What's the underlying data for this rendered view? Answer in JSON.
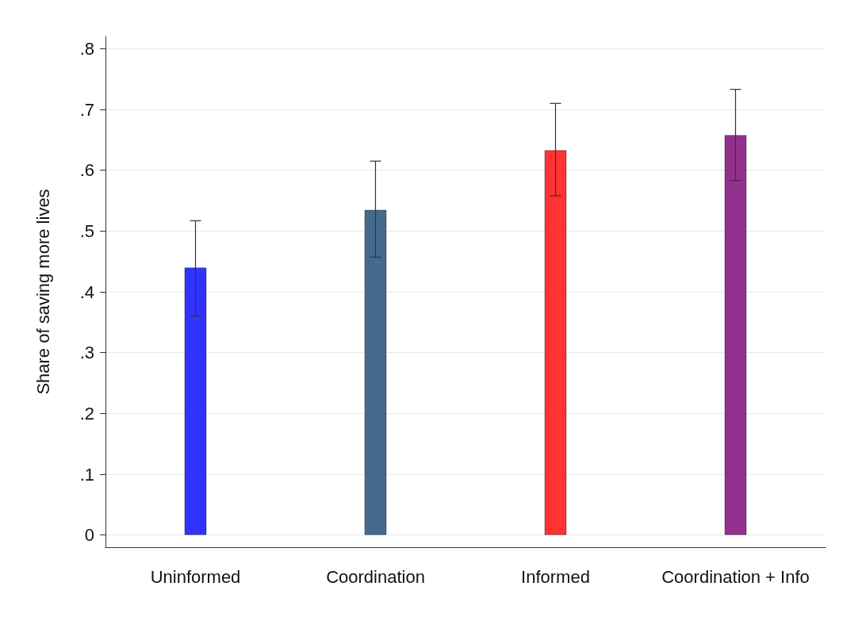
{
  "chart_data": {
    "type": "bar",
    "ylabel": "Share of saving more lives",
    "categories": [
      "Uninformed",
      "Coordination",
      "Informed",
      "Coordination + Info"
    ],
    "values": [
      0.44,
      0.535,
      0.633,
      0.658
    ],
    "colors": [
      "#3333ff",
      "#466a8c",
      "#ff3333",
      "#93308f"
    ],
    "errors": [
      [
        0.36,
        0.517
      ],
      [
        0.457,
        0.615
      ],
      [
        0.558,
        0.71
      ],
      [
        0.583,
        0.733
      ]
    ],
    "ylim": [
      -0.02,
      0.82
    ],
    "yticks": [
      0,
      {
        "value": 0.1,
        "label": ".1"
      },
      {
        "value": 0.2,
        "label": ".2"
      },
      {
        "value": 0.3,
        "label": ".3"
      },
      {
        "value": 0.4,
        "label": ".4"
      },
      {
        "value": 0.5,
        "label": ".5"
      },
      {
        "value": 0.6,
        "label": ".6"
      },
      {
        "value": 0.7,
        "label": ".7"
      },
      {
        "value": 0.8,
        "label": ".8"
      }
    ],
    "grid": "y"
  }
}
